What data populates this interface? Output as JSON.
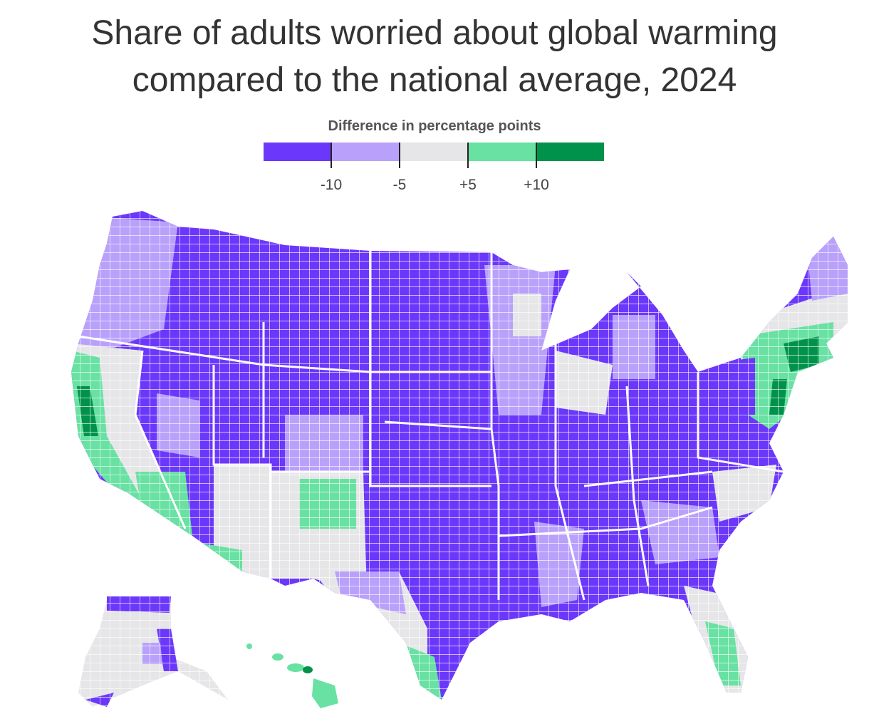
{
  "title_line1": "Share of adults worried about global warming",
  "title_line2": "compared to the national average, 2024",
  "legend": {
    "title": "Difference in percentage points",
    "swatches": [
      {
        "color": "#6b38fb"
      },
      {
        "color": "#b9a1fb"
      },
      {
        "color": "#e6e6e8"
      },
      {
        "color": "#68e1a2"
      },
      {
        "color": "#00924b"
      }
    ],
    "tick_labels": [
      "-10",
      "-5",
      "+5",
      "+10"
    ]
  },
  "colors": {
    "strong_below": "#6b38fb",
    "below": "#b9a1fb",
    "near": "#e6e6e8",
    "above": "#68e1a2",
    "strong_above": "#00924b"
  },
  "map_regions": [
    {
      "region": "Pacific Northwest",
      "category": "below"
    },
    {
      "region": "Mountain West",
      "category": "strong_below"
    },
    {
      "region": "Great Plains",
      "category": "strong_below"
    },
    {
      "region": "Midwest",
      "category": "strong_below"
    },
    {
      "region": "Appalachia",
      "category": "strong_below"
    },
    {
      "region": "Deep South",
      "category": "strong_below"
    },
    {
      "region": "California Coast",
      "category": "above"
    },
    {
      "region": "Southwest Desert",
      "category": "near"
    },
    {
      "region": "Northeast Corridor",
      "category": "above"
    },
    {
      "region": "Florida",
      "category": "near"
    },
    {
      "region": "Alaska",
      "category": "near"
    },
    {
      "region": "Hawaii",
      "category": "above"
    }
  ]
}
